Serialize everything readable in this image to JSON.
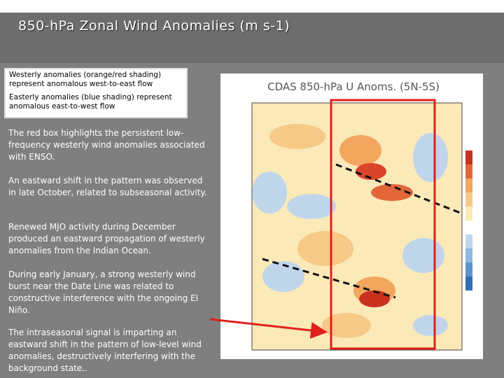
{
  "header": {
    "title": "850-hPa Zonal Wind Anomalies (m s-1)"
  },
  "callout": [
    "Westerly anomalies (orange/red shading) represent anomalous west-to-east flow",
    "Easterly anomalies (blue shading) represent anomalous east-to-west flow"
  ],
  "paragraphs": [
    "The red box highlights the persistent low-frequency westerly wind anomalies associated with ENSO.",
    "An eastward shift in the pattern was observed in late October, related to subseasonal activity.",
    "Renewed MJO activity during December produced an eastward propagation of westerly anomalies from the Indian Ocean.",
    "During early January, a strong westerly wind burst near the Date Line was related to constructive interference with the ongoing El Niño.",
    "The intraseasonal signal is imparting an eastward shift in the pattern of low-level wind anomalies, destructively interfering with the background state.."
  ],
  "figure": {
    "title": "CDAS 850-hPa U Anoms. (5N-5S)"
  }
}
